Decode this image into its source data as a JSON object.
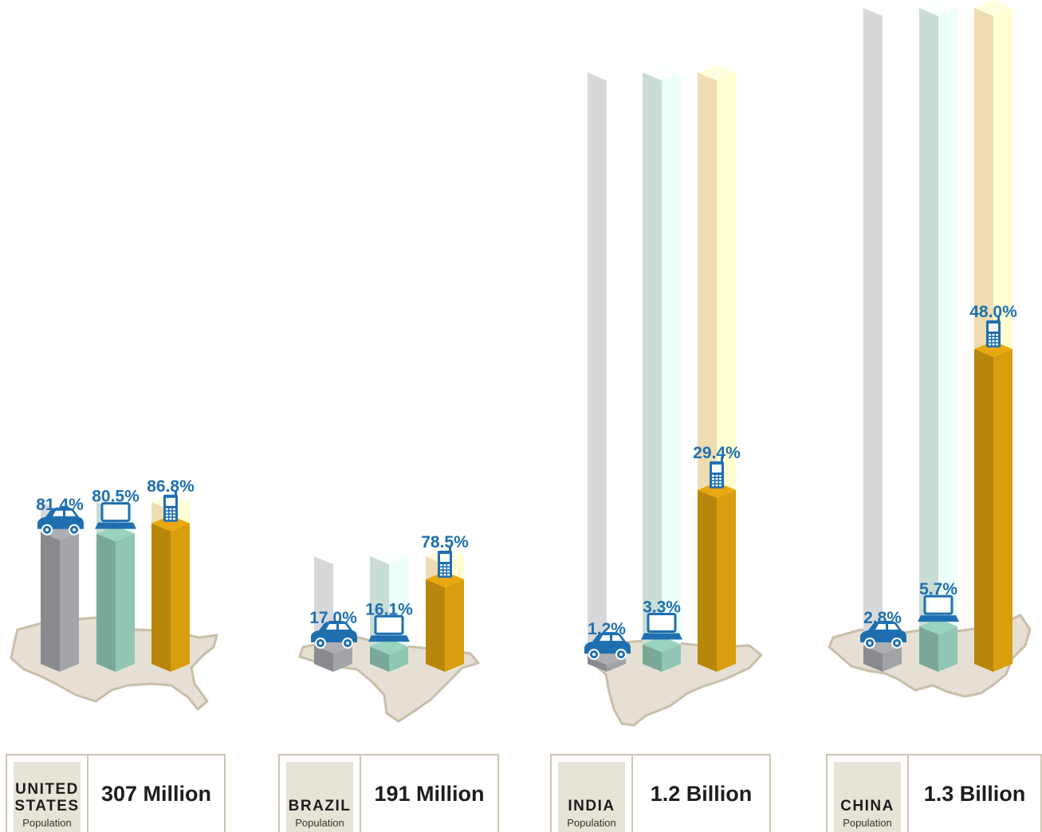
{
  "chart_data": {
    "type": "bar",
    "categories": [
      "Cars",
      "Computers",
      "Mobile phones"
    ],
    "icons": [
      "car-icon",
      "laptop-icon",
      "mobile-phone-icon"
    ],
    "colors": {
      "car": "#8a8b8e",
      "computer": "#7aa898",
      "phone": "#b8860b",
      "car_ghost": "#d7d8da",
      "computer_ghost": "#c9ddd5",
      "phone_ghost": "#efdcb2",
      "label": "#1f6fb0",
      "map": "#e5e0d3"
    },
    "countries": [
      {
        "name": "UNITED STATES",
        "population": "307 Million",
        "values": [
          81.4,
          80.5,
          86.8
        ],
        "labels": [
          "81.4%",
          "80.5%",
          "86.8%"
        ]
      },
      {
        "name": "BRAZIL",
        "population": "191 Million",
        "values": [
          17.0,
          16.1,
          78.5
        ],
        "labels": [
          "17.0%",
          "16.1%",
          "78.5%"
        ]
      },
      {
        "name": "INDIA",
        "population": "1.2 Billion",
        "values": [
          1.2,
          3.3,
          29.4
        ],
        "labels": [
          "1.2%",
          "3.3%",
          "29.4%"
        ]
      },
      {
        "name": "CHINA",
        "population": "1.3 Billion",
        "values": [
          2.8,
          5.7,
          48.0
        ],
        "labels": [
          "2.8%",
          "5.7%",
          "48.0%"
        ]
      }
    ]
  },
  "population_label": "Population",
  "country_boxes": [
    {
      "name": "UNITED\nSTATES",
      "value": "307 Million"
    },
    {
      "name": "BRAZIL",
      "value": "191 Million"
    },
    {
      "name": "INDIA",
      "value": "1.2 Billion"
    },
    {
      "name": "CHINA",
      "value": "1.3 Billion"
    }
  ]
}
